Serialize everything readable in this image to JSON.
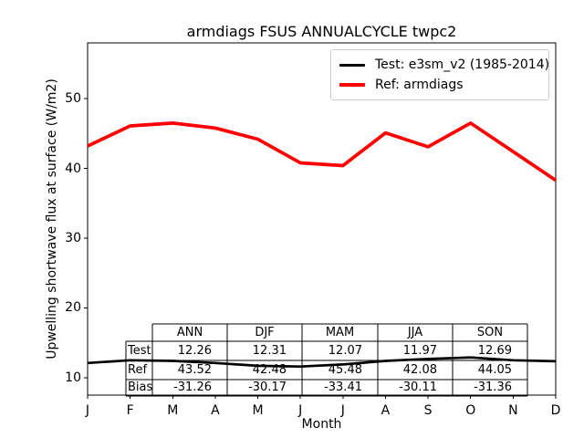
{
  "chart_data": {
    "type": "line",
    "title": "armdiags FSUS ANNUALCYCLE twpc2",
    "xlabel": "Month",
    "ylabel": "Upwelling shortwave flux at surface (W/m2)",
    "x_categories": [
      "J",
      "F",
      "M",
      "A",
      "M",
      "J",
      "J",
      "A",
      "S",
      "O",
      "N",
      "D"
    ],
    "ylim": [
      7.5,
      58
    ],
    "yticks": [
      10,
      20,
      30,
      40,
      50
    ],
    "grid": false,
    "legend_position": "upper right",
    "legend_border_color": "#cccccc",
    "series": [
      {
        "name": "Test: e3sm_v2 (1985-2014)",
        "color": "#000000",
        "values": [
          12.1,
          12.5,
          12.4,
          12.1,
          11.7,
          11.6,
          11.9,
          12.4,
          12.7,
          12.9,
          12.5,
          12.35
        ]
      },
      {
        "name": "Ref: armdiags",
        "color": "#ff0000",
        "values": [
          43.2,
          46.1,
          46.5,
          45.8,
          44.2,
          40.8,
          40.4,
          45.1,
          43.1,
          46.5,
          42.4,
          38.3
        ]
      }
    ],
    "stats_table": {
      "col_headers": [
        "ANN",
        "DJF",
        "MAM",
        "JJA",
        "SON"
      ],
      "rows": [
        {
          "label": "Test",
          "values": [
            "12.26",
            "12.31",
            "12.07",
            "11.97",
            "12.69"
          ]
        },
        {
          "label": "Ref",
          "values": [
            "43.52",
            "42.48",
            "45.48",
            "42.08",
            "44.05"
          ]
        },
        {
          "label": "Bias",
          "values": [
            "-31.26",
            "-30.17",
            "-33.41",
            "-30.11",
            "-31.36"
          ]
        }
      ]
    }
  }
}
